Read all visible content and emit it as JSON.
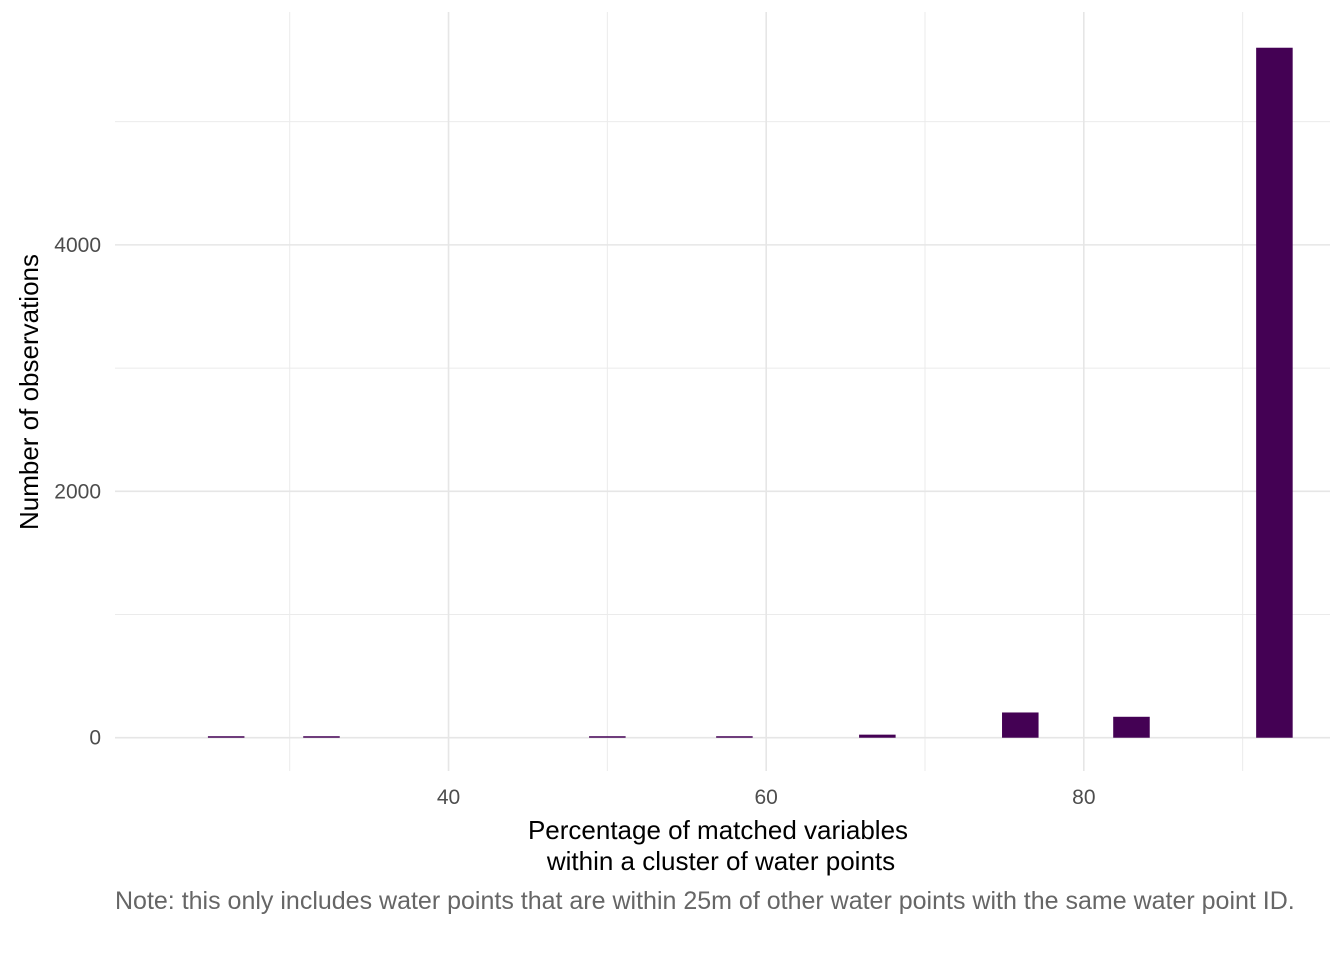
{
  "chart_data": {
    "type": "bar",
    "subtype": "histogram",
    "x": [
      26,
      32,
      50,
      58,
      67,
      76,
      83,
      92
    ],
    "values": [
      2,
      2,
      2,
      2,
      25,
      205,
      170,
      5600
    ],
    "xlabel": [
      "Percentage of matched variables",
      "within a cluster of water points"
    ],
    "ylabel": "Number of observations",
    "xticks": [
      40,
      60,
      80
    ],
    "yticks": [
      0,
      2000,
      4000
    ],
    "xlim": [
      19,
      95.5
    ],
    "ylim": [
      -270,
      5890
    ],
    "grid": true,
    "bar_color": "#440154",
    "caption": "Note: this only includes water points that are within 25m of other water points with the same water point ID."
  }
}
